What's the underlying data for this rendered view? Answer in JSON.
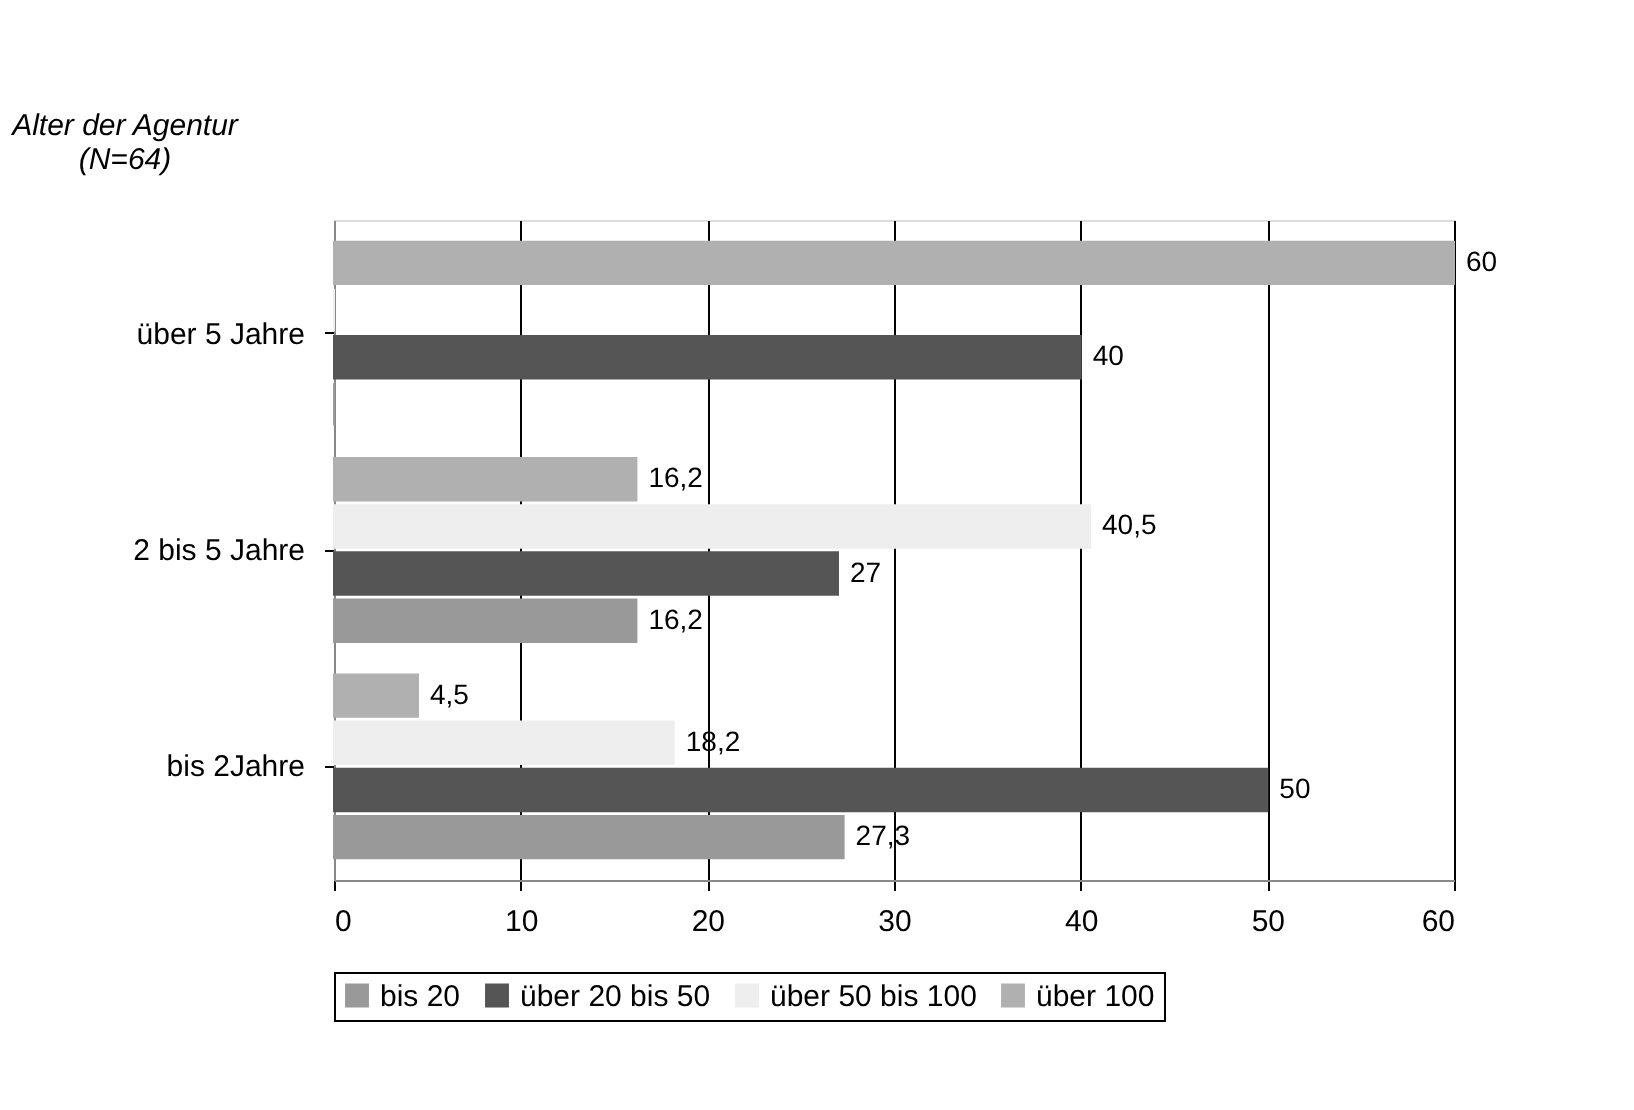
{
  "chart_data": {
    "type": "bar",
    "orientation": "horizontal",
    "ylabel": "Alter der Agentur\n(N=64)",
    "categories": [
      "über 5 Jahre",
      "2 bis 5 Jahre",
      "bis 2Jahre"
    ],
    "series": [
      {
        "name": "bis 20",
        "color": "#999999",
        "values": [
          0,
          16.2,
          27.3
        ],
        "value_labels": [
          null,
          "16,2",
          "27,3"
        ]
      },
      {
        "name": "über 20 bis 50",
        "color": "#555555",
        "values": [
          40,
          27,
          50
        ],
        "value_labels": [
          "40",
          "27",
          "50"
        ]
      },
      {
        "name": "über 50 bis 100",
        "color": "#eeeeee",
        "values": [
          0,
          40.5,
          18.2
        ],
        "value_labels": [
          null,
          "40,5",
          "18,2"
        ]
      },
      {
        "name": "über 100",
        "color": "#b0b0b0",
        "values": [
          60,
          16.2,
          4.5
        ],
        "value_labels": [
          "60",
          "16,2",
          "4,5"
        ]
      }
    ],
    "xlim": [
      0,
      60
    ],
    "xticks": [
      0,
      10,
      20,
      30,
      40,
      50,
      60
    ],
    "grid": "x",
    "legend": "bottom"
  }
}
